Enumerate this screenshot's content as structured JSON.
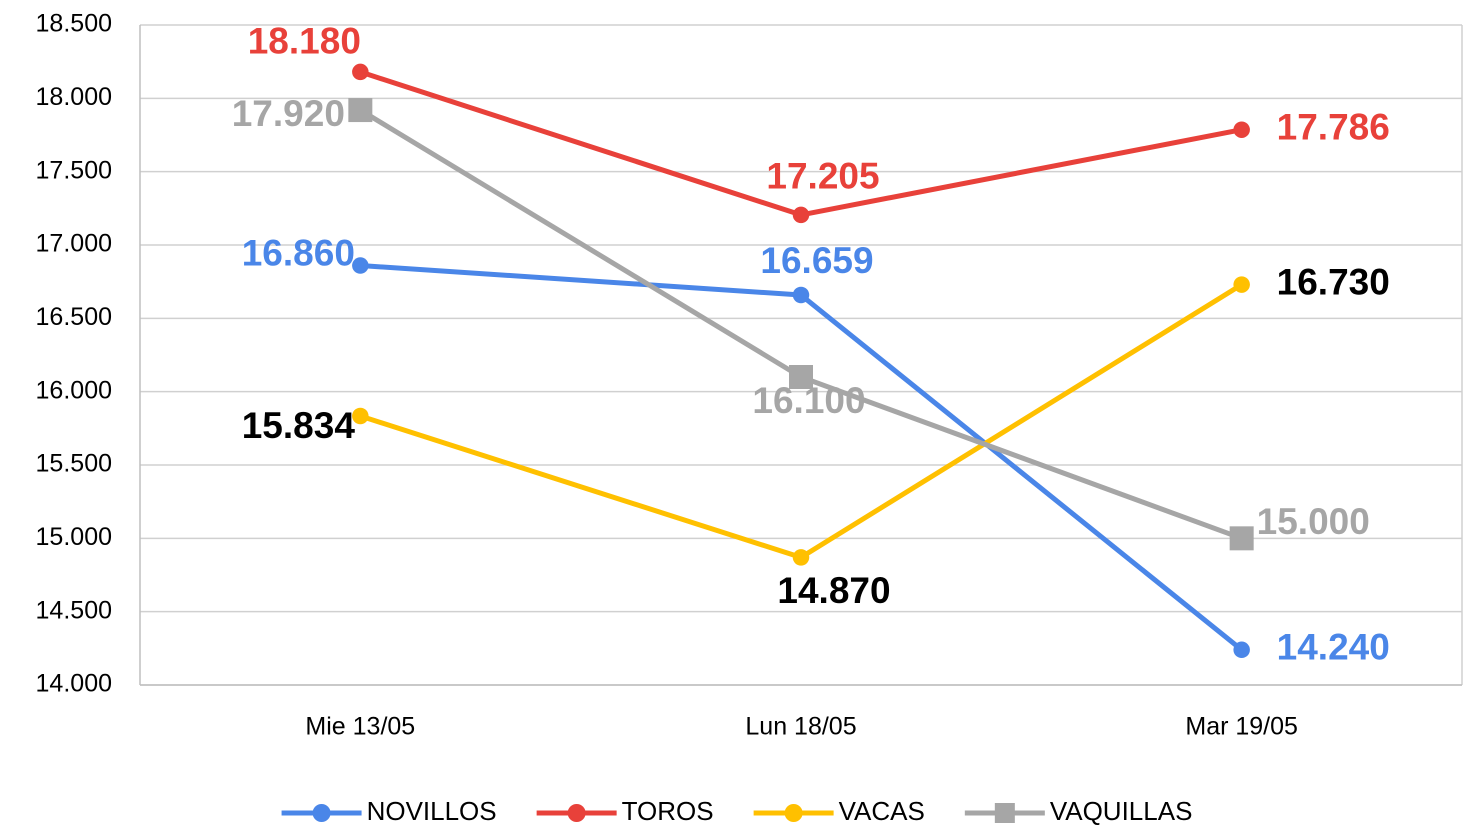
{
  "chart_data": {
    "type": "line",
    "categories": [
      "Mie 13/05",
      "Lun 18/05",
      "Mar 19/05"
    ],
    "series": [
      {
        "name": "NOVILLOS",
        "color": "#4a86e8",
        "label_color": "#4a86e8",
        "marker": "circle",
        "values": [
          16860,
          16659,
          14240
        ],
        "value_labels": [
          "16.860",
          "16.659",
          "14.240"
        ]
      },
      {
        "name": "TOROS",
        "color": "#e8413a",
        "label_color": "#e8413a",
        "marker": "circle",
        "values": [
          18180,
          17205,
          17786
        ],
        "value_labels": [
          "18.180",
          "17.205",
          "17.786"
        ]
      },
      {
        "name": "VACAS",
        "color": "#ffc000",
        "label_color": "#000000",
        "marker": "circle",
        "values": [
          15834,
          14870,
          16730
        ],
        "value_labels": [
          "15.834",
          "14.870",
          "16.730"
        ]
      },
      {
        "name": "VAQUILLAS",
        "color": "#a6a6a6",
        "label_color": "#a6a6a6",
        "marker": "square",
        "values": [
          17920,
          16100,
          15000
        ],
        "value_labels": [
          "17.920",
          "16.100",
          "15.000"
        ]
      }
    ],
    "ylim": [
      14000,
      18500
    ],
    "yticks": [
      {
        "value": 14000,
        "label": "14.000"
      },
      {
        "value": 14500,
        "label": "14.500"
      },
      {
        "value": 15000,
        "label": "15.000"
      },
      {
        "value": 15500,
        "label": "15.500"
      },
      {
        "value": 16000,
        "label": "16.000"
      },
      {
        "value": 16500,
        "label": "16.500"
      },
      {
        "value": 17000,
        "label": "17.000"
      },
      {
        "value": 17500,
        "label": "17.500"
      },
      {
        "value": 18000,
        "label": "18.000"
      },
      {
        "value": 18500,
        "label": "18.500"
      }
    ],
    "grid": true,
    "legend": "bottom"
  }
}
